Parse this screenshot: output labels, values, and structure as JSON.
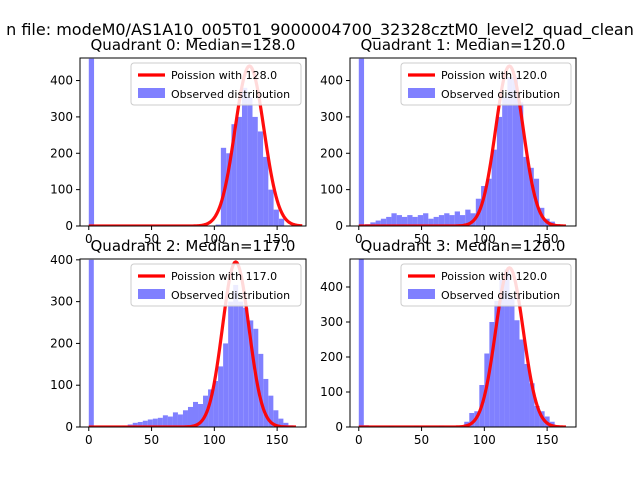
{
  "suptitle": "n file: modeM0/AS1A10_005T01_9000004700_32328cztM0_level2_quad_clean",
  "colors": {
    "bars": "#8080ff",
    "fit": "#ff0000",
    "axis": "#000000",
    "background": "#ffffff"
  },
  "chart_data": [
    {
      "type": "histogram+line",
      "title": "Quadrant 0: Median=128.0",
      "median": 128,
      "xlim": [
        -7,
        173
      ],
      "ylim": [
        0,
        462
      ],
      "xticks": [
        0,
        50,
        100,
        150
      ],
      "yticks": [
        0,
        100,
        200,
        300,
        400
      ],
      "legend": [
        "Poission with 128.0",
        "Observed distribution"
      ],
      "legend_loc": "upper right",
      "bin_width": 4.2,
      "bins_start": [
        0,
        101,
        105.2,
        109.4,
        113.6,
        117.8,
        122,
        126.2,
        130.4,
        134.6,
        138.8,
        143,
        147.2,
        151.4
      ],
      "bin_counts": [
        460,
        4,
        215,
        200,
        280,
        300,
        380,
        355,
        300,
        260,
        190,
        100,
        45,
        20
      ],
      "fit_mean": 128,
      "fit_sigma": 11.5,
      "fit_peak": 440,
      "fit_range": [
        0,
        170
      ]
    },
    {
      "type": "histogram+line",
      "title": "Quadrant 1: Median=120.0",
      "median": 120,
      "xlim": [
        -7,
        173
      ],
      "ylim": [
        0,
        462
      ],
      "xticks": [
        0,
        50,
        100,
        150
      ],
      "yticks": [
        0,
        100,
        200,
        300,
        400
      ],
      "legend": [
        "Poission with 120.0",
        "Observed distribution"
      ],
      "legend_loc": "upper right",
      "bin_width": 4.2,
      "bins_start": [
        0,
        5,
        9.2,
        13.4,
        17.6,
        21.8,
        26,
        30.2,
        34.4,
        38.6,
        42.8,
        47,
        51.2,
        55.4,
        59.6,
        63.8,
        68,
        72.2,
        76.4,
        80.6,
        84.8,
        89,
        93.2,
        97.4,
        101.6,
        105.8,
        110,
        114.2,
        118.4,
        122.6,
        126.8,
        131,
        135.2,
        139.4,
        143.6,
        147.8,
        152,
        156.2
      ],
      "bin_counts": [
        460,
        5,
        10,
        15,
        20,
        25,
        35,
        30,
        25,
        30,
        25,
        30,
        35,
        20,
        25,
        30,
        35,
        30,
        40,
        30,
        45,
        35,
        75,
        110,
        130,
        210,
        300,
        355,
        410,
        410,
        340,
        190,
        160,
        130,
        50,
        20,
        12,
        5
      ],
      "fit_mean": 120,
      "fit_sigma": 11,
      "fit_peak": 440,
      "fit_range": [
        0,
        165
      ]
    },
    {
      "type": "histogram+line",
      "title": "Quadrant 2: Median=117.0",
      "median": 117,
      "xlim": [
        -7,
        173
      ],
      "ylim": [
        0,
        402
      ],
      "xticks": [
        0,
        50,
        100,
        150
      ],
      "yticks": [
        0,
        100,
        200,
        300,
        400
      ],
      "legend": [
        "Poission with 117.0",
        "Observed distribution"
      ],
      "legend_loc": "upper right",
      "bin_width": 4,
      "bins_start": [
        0,
        27,
        31,
        35,
        39,
        43,
        47,
        51,
        55,
        59,
        63,
        67,
        71,
        75,
        79,
        83,
        87,
        91,
        95,
        99,
        103,
        107,
        111,
        115,
        119,
        123,
        127,
        131,
        135,
        139,
        143,
        147,
        151,
        155,
        159
      ],
      "bin_counts": [
        400,
        3,
        6,
        10,
        12,
        15,
        18,
        20,
        22,
        28,
        25,
        35,
        30,
        40,
        48,
        60,
        55,
        75,
        90,
        110,
        145,
        200,
        300,
        340,
        300,
        285,
        255,
        235,
        175,
        115,
        75,
        40,
        20,
        10,
        4
      ],
      "fit_mean": 117,
      "fit_sigma": 10.5,
      "fit_peak": 395,
      "fit_range": [
        0,
        165
      ]
    },
    {
      "type": "histogram+line",
      "title": "Quadrant 3: Median=120.0",
      "median": 120,
      "xlim": [
        -7,
        173
      ],
      "ylim": [
        0,
        480
      ],
      "xticks": [
        0,
        50,
        100,
        150
      ],
      "yticks": [
        0,
        100,
        200,
        300,
        400
      ],
      "legend": [
        "Poission with 120.0",
        "Observed distribution"
      ],
      "legend_loc": "upper right",
      "bin_width": 4,
      "bins_start": [
        0,
        4,
        24,
        44,
        64,
        84,
        88,
        92,
        96,
        100,
        104,
        108,
        112,
        116,
        120,
        124,
        128,
        132,
        136,
        140,
        144,
        148,
        152,
        156
      ],
      "bin_counts": [
        480,
        5,
        3,
        3,
        4,
        15,
        40,
        45,
        120,
        210,
        300,
        360,
        420,
        450,
        370,
        305,
        250,
        180,
        125,
        60,
        45,
        30,
        15,
        5
      ],
      "fit_mean": 120,
      "fit_sigma": 11,
      "fit_peak": 455,
      "fit_range": [
        0,
        165
      ]
    }
  ]
}
